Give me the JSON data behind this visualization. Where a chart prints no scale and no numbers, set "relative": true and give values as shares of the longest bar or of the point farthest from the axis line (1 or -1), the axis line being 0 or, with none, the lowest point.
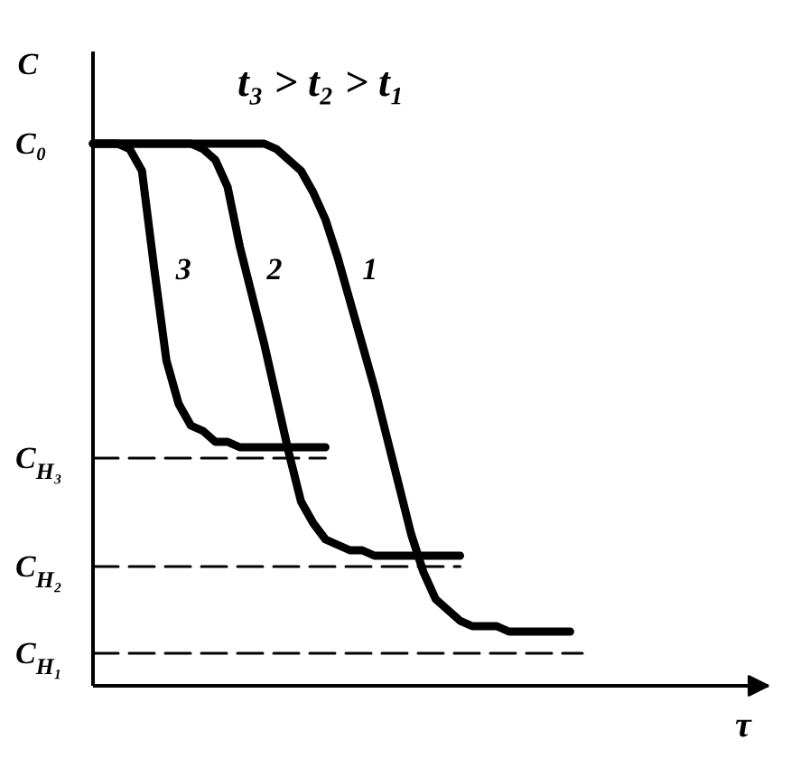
{
  "chart_data": {
    "type": "line",
    "relative": true,
    "title": "t₃ > t₂ > t₁",
    "xlabel": "τ",
    "ylabel": "C",
    "line_style": "solid",
    "categories": [
      null,
      null,
      null,
      null,
      null,
      null,
      null,
      null,
      null,
      null,
      null,
      null,
      null,
      null,
      null,
      null,
      null,
      null,
      null,
      null,
      null,
      null,
      null,
      null,
      null,
      null,
      null,
      null,
      null,
      null,
      null,
      null,
      null,
      null,
      null,
      null,
      null,
      null,
      null,
      null,
      null
    ],
    "series": [
      {
        "name": "1",
        "color": "#000000",
        "values": [
          1,
          1,
          1,
          1,
          1,
          1,
          1,
          1,
          1,
          1,
          1,
          1,
          1,
          1,
          1,
          0.99,
          0.97,
          0.95,
          0.91,
          0.86,
          0.79,
          0.71,
          0.63,
          0.55,
          0.46,
          0.37,
          0.28,
          0.21,
          0.16,
          0.14,
          0.12,
          0.11,
          0.11,
          0.11,
          0.1,
          0.1,
          0.1,
          0.1,
          0.1,
          0.1,
          null
        ]
      },
      {
        "name": "2",
        "color": "#000000",
        "values": [
          1,
          1,
          1,
          1,
          1,
          1,
          1,
          1,
          1,
          0.99,
          0.97,
          0.92,
          0.81,
          0.72,
          0.63,
          0.53,
          0.43,
          0.34,
          0.3,
          0.27,
          0.26,
          0.25,
          0.25,
          0.24,
          0.24,
          0.24,
          0.24,
          0.24,
          0.24,
          0.24,
          0.24,
          null,
          null,
          null,
          null,
          null,
          null,
          null,
          null,
          null,
          null
        ]
      },
      {
        "name": "3",
        "color": "#000000",
        "values": [
          1,
          1,
          1,
          0.99,
          0.95,
          0.77,
          0.6,
          0.52,
          0.48,
          0.47,
          0.45,
          0.45,
          0.44,
          0.44,
          0.44,
          0.44,
          0.44,
          0.44,
          0.44,
          0.44,
          null,
          null,
          null,
          null,
          null,
          null,
          null,
          null,
          null,
          null,
          null,
          null,
          null,
          null,
          null,
          null,
          null,
          null,
          null,
          null,
          null
        ]
      },
      {
        "name": "C$_{H₃}$",
        "color": "#000000",
        "line_style": "dashed",
        "values": [
          0.42,
          0.42,
          0.42,
          0.42,
          0.42,
          0.42,
          0.42,
          0.42,
          0.42,
          0.42,
          0.42,
          0.42,
          0.42,
          0.42,
          0.42,
          0.42,
          0.42,
          0.42,
          0.42,
          0.42,
          null,
          null,
          null,
          null,
          null,
          null,
          null,
          null,
          null,
          null,
          null,
          null,
          null,
          null,
          null,
          null,
          null,
          null,
          null,
          null,
          null
        ]
      },
      {
        "name": "C$_{H₂}$",
        "color": "#000000",
        "line_style": "dashed",
        "values": [
          0.22,
          0.22,
          0.22,
          0.22,
          0.22,
          0.22,
          0.22,
          0.22,
          0.22,
          0.22,
          0.22,
          0.22,
          0.22,
          0.22,
          0.22,
          0.22,
          0.22,
          0.22,
          0.22,
          0.22,
          0.22,
          0.22,
          0.22,
          0.22,
          0.22,
          0.22,
          0.22,
          0.22,
          0.22,
          0.22,
          0.22,
          null,
          null,
          null,
          null,
          null,
          null,
          null,
          null,
          null,
          null
        ]
      },
      {
        "name": "C$_{H₁}$",
        "color": "#000000",
        "line_style": "dashed",
        "values": [
          0.06,
          0.06,
          0.06,
          0.06,
          0.06,
          0.06,
          0.06,
          0.06,
          0.06,
          0.06,
          0.06,
          0.06,
          0.06,
          0.06,
          0.06,
          0.06,
          0.06,
          0.06,
          0.06,
          0.06,
          0.06,
          0.06,
          0.06,
          0.06,
          0.06,
          0.06,
          0.06,
          0.06,
          0.06,
          0.06,
          0.06,
          0.06,
          0.06,
          0.06,
          0.06,
          0.06,
          0.06,
          0.06,
          0.06,
          0.06,
          0.06
        ]
      }
    ],
    "annotations": [
      "C₀"
    ]
  }
}
